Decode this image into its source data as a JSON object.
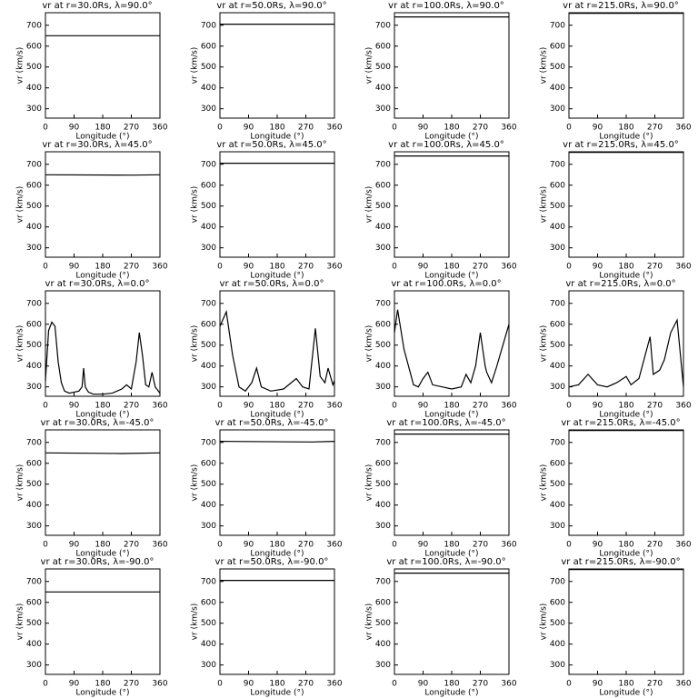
{
  "chart_data": [
    {
      "type": "line",
      "title": "vr at r=30.0Rs, λ=90.0°",
      "xlabel": "Longitude (°)",
      "ylabel": "vr (km/s)",
      "x": [
        0,
        360
      ],
      "values": [
        650,
        650
      ],
      "color": "#000000",
      "xlim": [
        0,
        360
      ],
      "ylim": [
        255,
        760
      ],
      "xticks": [
        0,
        90,
        180,
        270,
        360
      ],
      "yticks": [
        300,
        400,
        500,
        600,
        700
      ]
    },
    {
      "type": "line",
      "title": "vr at r=50.0Rs, λ=90.0°",
      "xlabel": "Longitude (°)",
      "ylabel": "vr (km/s)",
      "x": [
        0,
        360
      ],
      "values": [
        705,
        705
      ],
      "color": "#000000",
      "xlim": [
        0,
        360
      ],
      "ylim": [
        255,
        760
      ],
      "xticks": [
        0,
        90,
        180,
        270,
        360
      ],
      "yticks": [
        300,
        400,
        500,
        600,
        700
      ]
    },
    {
      "type": "line",
      "title": "vr at r=100.0Rs, λ=90.0°",
      "xlabel": "Longitude (°)",
      "ylabel": "vr (km/s)",
      "x": [
        0,
        360
      ],
      "values": [
        740,
        740
      ],
      "color": "#000000",
      "xlim": [
        0,
        360
      ],
      "ylim": [
        255,
        760
      ],
      "xticks": [
        0,
        90,
        180,
        270,
        360
      ],
      "yticks": [
        300,
        400,
        500,
        600,
        700
      ]
    },
    {
      "type": "line",
      "title": "vr at r=215.0Rs, λ=90.0°",
      "xlabel": "Longitude (°)",
      "ylabel": "vr (km/s)",
      "x": [
        0,
        360
      ],
      "values": [
        757,
        757
      ],
      "color": "#000000",
      "xlim": [
        0,
        360
      ],
      "ylim": [
        255,
        760
      ],
      "xticks": [
        0,
        90,
        180,
        270,
        360
      ],
      "yticks": [
        300,
        400,
        500,
        600,
        700
      ]
    },
    {
      "type": "line",
      "title": "vr at r=30.0Rs, λ=45.0°",
      "xlabel": "Longitude (°)",
      "ylabel": "vr (km/s)",
      "x": [
        0,
        270,
        360
      ],
      "values": [
        650,
        648,
        650
      ],
      "color": "#000000",
      "xlim": [
        0,
        360
      ],
      "ylim": [
        255,
        760
      ],
      "xticks": [
        0,
        90,
        180,
        270,
        360
      ],
      "yticks": [
        300,
        400,
        500,
        600,
        700
      ]
    },
    {
      "type": "line",
      "title": "vr at r=50.0Rs, λ=45.0°",
      "xlabel": "Longitude (°)",
      "ylabel": "vr (km/s)",
      "x": [
        0,
        360
      ],
      "values": [
        705,
        705
      ],
      "color": "#000000",
      "xlim": [
        0,
        360
      ],
      "ylim": [
        255,
        760
      ],
      "xticks": [
        0,
        90,
        180,
        270,
        360
      ],
      "yticks": [
        300,
        400,
        500,
        600,
        700
      ]
    },
    {
      "type": "line",
      "title": "vr at r=100.0Rs, λ=45.0°",
      "xlabel": "Longitude (°)",
      "ylabel": "vr (km/s)",
      "x": [
        0,
        360
      ],
      "values": [
        740,
        740
      ],
      "color": "#000000",
      "xlim": [
        0,
        360
      ],
      "ylim": [
        255,
        760
      ],
      "xticks": [
        0,
        90,
        180,
        270,
        360
      ],
      "yticks": [
        300,
        400,
        500,
        600,
        700
      ]
    },
    {
      "type": "line",
      "title": "vr at r=215.0Rs, λ=45.0°",
      "xlabel": "Longitude (°)",
      "ylabel": "vr (km/s)",
      "x": [
        0,
        360
      ],
      "values": [
        757,
        757
      ],
      "color": "#000000",
      "xlim": [
        0,
        360
      ],
      "ylim": [
        255,
        760
      ],
      "xticks": [
        0,
        90,
        180,
        270,
        360
      ],
      "yticks": [
        300,
        400,
        500,
        600,
        700
      ]
    },
    {
      "type": "line",
      "title": "vr at r=30.0Rs, λ=0.0°",
      "xlabel": "Longitude (°)",
      "ylabel": "vr (km/s)",
      "x": [
        0,
        10,
        20,
        30,
        40,
        50,
        60,
        75,
        90,
        105,
        115,
        120,
        125,
        135,
        150,
        180,
        210,
        240,
        255,
        270,
        285,
        295,
        305,
        315,
        325,
        335,
        345,
        360
      ],
      "values": [
        330,
        570,
        610,
        590,
        420,
        320,
        280,
        270,
        275,
        280,
        300,
        390,
        300,
        275,
        265,
        265,
        270,
        290,
        310,
        290,
        420,
        560,
        450,
        310,
        300,
        370,
        300,
        270
      ],
      "color": "#000000",
      "xlim": [
        0,
        360
      ],
      "ylim": [
        255,
        760
      ],
      "xticks": [
        0,
        90,
        180,
        270,
        360
      ],
      "yticks": [
        300,
        400,
        500,
        600,
        700
      ]
    },
    {
      "type": "line",
      "title": "vr at r=50.0Rs, λ=0.0°",
      "xlabel": "Longitude (°)",
      "ylabel": "vr (km/s)",
      "x": [
        0,
        20,
        40,
        60,
        80,
        100,
        115,
        130,
        160,
        200,
        240,
        260,
        280,
        300,
        315,
        330,
        340,
        355,
        360
      ],
      "values": [
        590,
        660,
        450,
        300,
        280,
        320,
        390,
        300,
        280,
        290,
        340,
        300,
        290,
        580,
        350,
        320,
        390,
        310,
        330
      ],
      "color": "#000000",
      "xlim": [
        0,
        360
      ],
      "ylim": [
        255,
        760
      ],
      "xticks": [
        0,
        90,
        180,
        270,
        360
      ],
      "yticks": [
        300,
        400,
        500,
        600,
        700
      ]
    },
    {
      "type": "line",
      "title": "vr at r=100.0Rs, λ=0.0°",
      "xlabel": "Longitude (°)",
      "ylabel": "vr (km/s)",
      "x": [
        0,
        10,
        30,
        60,
        75,
        90,
        105,
        120,
        150,
        180,
        210,
        225,
        240,
        255,
        270,
        285,
        290,
        305,
        320,
        360
      ],
      "values": [
        560,
        670,
        480,
        310,
        300,
        340,
        370,
        310,
        300,
        290,
        300,
        360,
        320,
        400,
        560,
        400,
        370,
        320,
        390,
        600
      ],
      "color": "#000000",
      "xlim": [
        0,
        360
      ],
      "ylim": [
        255,
        760
      ],
      "xticks": [
        0,
        90,
        180,
        270,
        360
      ],
      "yticks": [
        300,
        400,
        500,
        600,
        700
      ]
    },
    {
      "type": "line",
      "title": "vr at r=215.0Rs, λ=0.0°",
      "xlabel": "Longitude (°)",
      "ylabel": "vr (km/s)",
      "x": [
        0,
        30,
        60,
        90,
        120,
        150,
        180,
        195,
        220,
        255,
        265,
        285,
        300,
        320,
        340,
        360
      ],
      "values": [
        300,
        310,
        360,
        310,
        300,
        320,
        350,
        310,
        340,
        540,
        360,
        380,
        430,
        560,
        620,
        300
      ],
      "color": "#000000",
      "xlim": [
        0,
        360
      ],
      "ylim": [
        255,
        760
      ],
      "xticks": [
        0,
        90,
        180,
        270,
        360
      ],
      "yticks": [
        300,
        400,
        500,
        600,
        700
      ]
    },
    {
      "type": "line",
      "title": "vr at r=30.0Rs, λ=-45.0°",
      "xlabel": "Longitude (°)",
      "ylabel": "vr (km/s)",
      "x": [
        0,
        240,
        360
      ],
      "values": [
        650,
        647,
        650
      ],
      "color": "#000000",
      "xlim": [
        0,
        360
      ],
      "ylim": [
        255,
        760
      ],
      "xticks": [
        0,
        90,
        180,
        270,
        360
      ],
      "yticks": [
        300,
        400,
        500,
        600,
        700
      ]
    },
    {
      "type": "line",
      "title": "vr at r=50.0Rs, λ=-45.0°",
      "xlabel": "Longitude (°)",
      "ylabel": "vr (km/s)",
      "x": [
        0,
        290,
        360
      ],
      "values": [
        705,
        702,
        705
      ],
      "color": "#000000",
      "xlim": [
        0,
        360
      ],
      "ylim": [
        255,
        760
      ],
      "xticks": [
        0,
        90,
        180,
        270,
        360
      ],
      "yticks": [
        300,
        400,
        500,
        600,
        700
      ]
    },
    {
      "type": "line",
      "title": "vr at r=100.0Rs, λ=-45.0°",
      "xlabel": "Longitude (°)",
      "ylabel": "vr (km/s)",
      "x": [
        0,
        360
      ],
      "values": [
        740,
        740
      ],
      "color": "#000000",
      "xlim": [
        0,
        360
      ],
      "ylim": [
        255,
        760
      ],
      "xticks": [
        0,
        90,
        180,
        270,
        360
      ],
      "yticks": [
        300,
        400,
        500,
        600,
        700
      ]
    },
    {
      "type": "line",
      "title": "vr at r=215.0Rs, λ=-45.0°",
      "xlabel": "Longitude (°)",
      "ylabel": "vr (km/s)",
      "x": [
        0,
        360
      ],
      "values": [
        757,
        757
      ],
      "color": "#000000",
      "xlim": [
        0,
        360
      ],
      "ylim": [
        255,
        760
      ],
      "xticks": [
        0,
        90,
        180,
        270,
        360
      ],
      "yticks": [
        300,
        400,
        500,
        600,
        700
      ]
    },
    {
      "type": "line",
      "title": "vr at r=30.0Rs, λ=-90.0°",
      "xlabel": "Longitude (°)",
      "ylabel": "vr (km/s)",
      "x": [
        0,
        360
      ],
      "values": [
        650,
        650
      ],
      "color": "#000000",
      "xlim": [
        0,
        360
      ],
      "ylim": [
        255,
        760
      ],
      "xticks": [
        0,
        90,
        180,
        270,
        360
      ],
      "yticks": [
        300,
        400,
        500,
        600,
        700
      ]
    },
    {
      "type": "line",
      "title": "vr at r=50.0Rs, λ=-90.0°",
      "xlabel": "Longitude (°)",
      "ylabel": "vr (km/s)",
      "x": [
        0,
        360
      ],
      "values": [
        705,
        705
      ],
      "color": "#000000",
      "xlim": [
        0,
        360
      ],
      "ylim": [
        255,
        760
      ],
      "xticks": [
        0,
        90,
        180,
        270,
        360
      ],
      "yticks": [
        300,
        400,
        500,
        600,
        700
      ]
    },
    {
      "type": "line",
      "title": "vr at r=100.0Rs, λ=-90.0°",
      "xlabel": "Longitude (°)",
      "ylabel": "vr (km/s)",
      "x": [
        0,
        360
      ],
      "values": [
        740,
        740
      ],
      "color": "#000000",
      "xlim": [
        0,
        360
      ],
      "ylim": [
        255,
        760
      ],
      "xticks": [
        0,
        90,
        180,
        270,
        360
      ],
      "yticks": [
        300,
        400,
        500,
        600,
        700
      ]
    },
    {
      "type": "line",
      "title": "vr at r=215.0Rs, λ=-90.0°",
      "xlabel": "Longitude (°)",
      "ylabel": "vr (km/s)",
      "x": [
        0,
        360
      ],
      "values": [
        757,
        757
      ],
      "color": "#000000",
      "xlim": [
        0,
        360
      ],
      "ylim": [
        255,
        760
      ],
      "xticks": [
        0,
        90,
        180,
        270,
        360
      ],
      "yticks": [
        300,
        400,
        500,
        600,
        700
      ]
    }
  ]
}
